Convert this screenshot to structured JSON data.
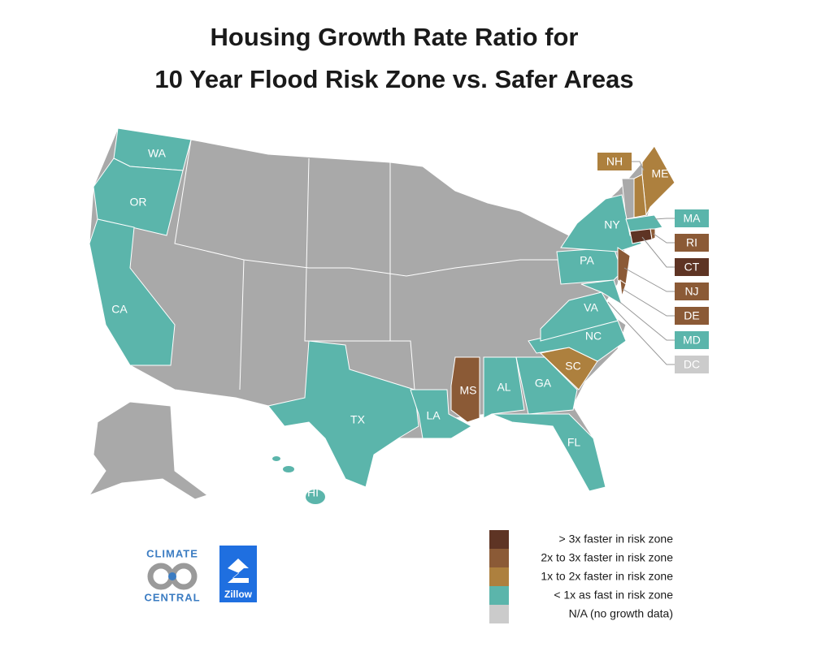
{
  "title": [
    "Housing Growth Rate Ratio for",
    "10 Year Flood Risk Zone vs. Safer Areas"
  ],
  "legend": [
    {
      "label": "> 3x faster in risk zone",
      "color": "#5e3424"
    },
    {
      "label": "2x to 3x faster in risk zone",
      "color": "#8b5a36"
    },
    {
      "label": "1x to 2x faster in risk zone",
      "color": "#ad803e"
    },
    {
      "label": "< 1x as fast in risk zone",
      "color": "#5bb5ab"
    },
    {
      "label": "N/A (no growth data)",
      "color": "#cbcbcb"
    }
  ],
  "states": [
    {
      "label": "WA",
      "category": 3
    },
    {
      "label": "OR",
      "category": 3
    },
    {
      "label": "CA",
      "category": 3
    },
    {
      "label": "TX",
      "category": 3
    },
    {
      "label": "LA",
      "category": 3
    },
    {
      "label": "MS",
      "category": 1
    },
    {
      "label": "AL",
      "category": 3
    },
    {
      "label": "GA",
      "category": 3
    },
    {
      "label": "FL",
      "category": 3
    },
    {
      "label": "SC",
      "category": 2
    },
    {
      "label": "NC",
      "category": 3
    },
    {
      "label": "VA",
      "category": 3
    },
    {
      "label": "PA",
      "category": 3
    },
    {
      "label": "NY",
      "category": 3
    },
    {
      "label": "HI",
      "category": 3
    },
    {
      "label": "ME",
      "category": 2
    },
    {
      "label": "NH",
      "category": 2
    },
    {
      "label": "MA",
      "category": 3
    },
    {
      "label": "RI",
      "category": 1
    },
    {
      "label": "CT",
      "category": 0
    },
    {
      "label": "NJ",
      "category": 1
    },
    {
      "label": "DE",
      "category": 1
    },
    {
      "label": "MD",
      "category": 3
    },
    {
      "label": "DC",
      "category": 4
    }
  ],
  "logos": {
    "climate_central": [
      "CLIMATE",
      "CENTRAL"
    ],
    "zillow": "Zillow"
  }
}
